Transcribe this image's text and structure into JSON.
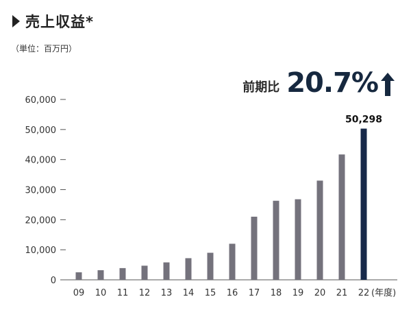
{
  "title": "売上収益*",
  "unit_note": "（単位：百万円）",
  "yoy": {
    "label": "前期比",
    "value": "20.7%"
  },
  "colors": {
    "bar": "#74727c",
    "highlight": "#17294a",
    "axis": "#555555"
  },
  "chart_data": {
    "type": "bar",
    "categories": [
      "09",
      "10",
      "11",
      "12",
      "13",
      "14",
      "15",
      "16",
      "17",
      "18",
      "19",
      "20",
      "21",
      "22"
    ],
    "values": [
      2500,
      3200,
      3900,
      4700,
      5800,
      7200,
      9000,
      12000,
      21000,
      26300,
      26800,
      33000,
      41700,
      50298
    ],
    "x_suffix": "(年度)",
    "ylim": [
      0,
      60000
    ],
    "yticks": [
      0,
      10000,
      20000,
      30000,
      40000,
      50000,
      60000
    ],
    "ytick_labels": [
      "0",
      "10,000",
      "20,000",
      "30,000",
      "40,000",
      "50,000",
      "60,000"
    ],
    "highlight_index": 13,
    "highlight_label": "50,298",
    "grid": false
  }
}
